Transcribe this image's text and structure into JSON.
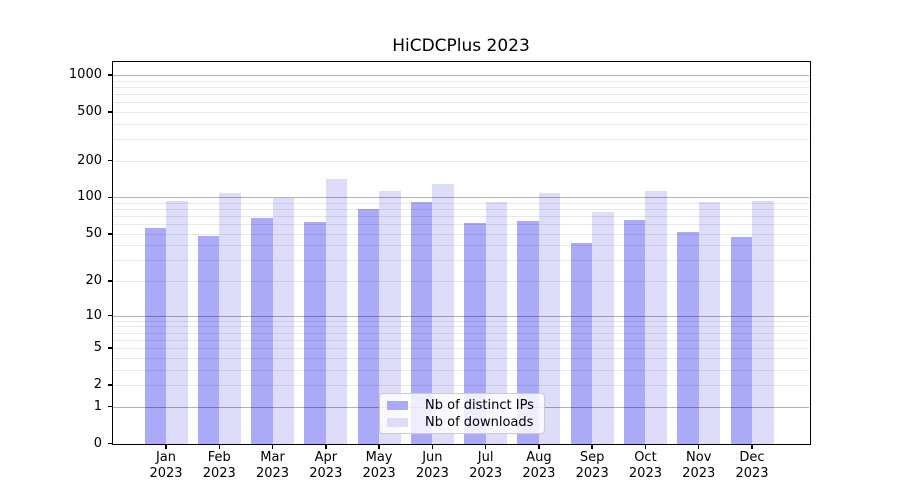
{
  "chart_data": {
    "type": "bar",
    "title": "HiCDCPlus 2023",
    "categories": [
      "Jan",
      "Feb",
      "Mar",
      "Apr",
      "May",
      "Jun",
      "Jul",
      "Aug",
      "Sep",
      "Oct",
      "Nov",
      "Dec"
    ],
    "x_year": "2023",
    "series": [
      {
        "name": "Nb of distinct IPs",
        "color": "#aaaaf8",
        "values": [
          56,
          48,
          67,
          63,
          80,
          92,
          61,
          64,
          42,
          65,
          52,
          47
        ]
      },
      {
        "name": "Nb of downloads",
        "color": "#ddddfa",
        "values": [
          93,
          108,
          98,
          142,
          113,
          129,
          91,
          108,
          75,
          113,
          92,
          94
        ]
      }
    ],
    "yscale": "log1p",
    "yticks": [
      0,
      1,
      2,
      5,
      10,
      20,
      50,
      100,
      200,
      500,
      1000
    ],
    "ylim": [
      0,
      1275
    ],
    "grid": {
      "major_decades": [
        1,
        10,
        100,
        1000
      ],
      "minor": "2-9 per decade"
    },
    "legend_position": "lower center",
    "colors": {
      "major_grid": "rgba(0,0,0,0.30)",
      "minor_grid": "rgba(0,0,0,0.09)",
      "axis": "#000000",
      "background": "#ffffff"
    }
  }
}
